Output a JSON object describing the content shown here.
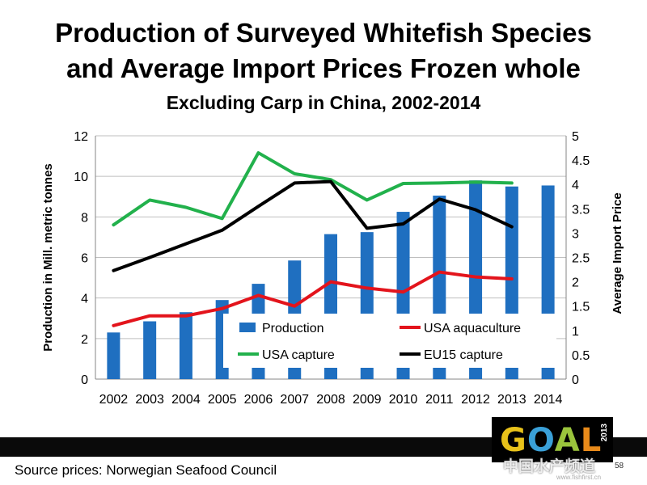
{
  "slide": {
    "title_line1": "Production of Surveyed Whitefish Species",
    "title_line2": "and Average Import Prices Frozen whole",
    "subtitle": "Excluding Carp in China, 2002-2014",
    "source": "Source prices: Norwegian Seafood Council",
    "slide_number": "58",
    "logo_text": "GOAL",
    "logo_year": "2013",
    "watermark": "中国水产频道",
    "watermark_url": "www.fishfirst.cn"
  },
  "chart_data": {
    "type": "bar",
    "categories": [
      "2002",
      "2003",
      "2004",
      "2005",
      "2006",
      "2007",
      "2008",
      "2009",
      "2010",
      "2011",
      "2012",
      "2013",
      "2014"
    ],
    "ylabel_left": "Production in Mill. metric tonnes",
    "ylabel_right": "Average Import Price",
    "ylim_left": [
      0,
      12
    ],
    "yticks_left": [
      "0",
      "2",
      "4",
      "6",
      "8",
      "10",
      "12"
    ],
    "ylim_right": [
      0,
      5
    ],
    "yticks_right": [
      "0",
      "0.5",
      "1",
      "1.5",
      "2",
      "2.5",
      "3",
      "3.5",
      "4",
      "4.5",
      "5"
    ],
    "grid": true,
    "legend_position": "bottom-inside",
    "bar_series": {
      "name": "Production",
      "color": "#1f6fc0",
      "values": [
        2.3,
        2.85,
        3.3,
        3.9,
        4.7,
        5.85,
        7.15,
        7.25,
        8.25,
        9.05,
        9.8,
        9.5,
        9.55
      ]
    },
    "line_series": [
      {
        "name": "USA aquaculture",
        "color": "#e3141c",
        "values": [
          1.1,
          1.3,
          1.3,
          1.45,
          1.72,
          1.5,
          2.0,
          1.87,
          1.79,
          2.2,
          2.1,
          2.06,
          null
        ]
      },
      {
        "name": "USA capture",
        "color": "#22b14c",
        "values": [
          3.17,
          3.68,
          3.53,
          3.3,
          4.65,
          4.22,
          4.1,
          3.68,
          4.02,
          4.03,
          4.05,
          4.03,
          null
        ]
      },
      {
        "name": "EU15 capture",
        "color": "#000000",
        "values": [
          2.23,
          2.5,
          2.78,
          3.06,
          3.55,
          4.03,
          4.06,
          3.1,
          3.19,
          3.7,
          3.48,
          3.13,
          null
        ]
      }
    ]
  }
}
